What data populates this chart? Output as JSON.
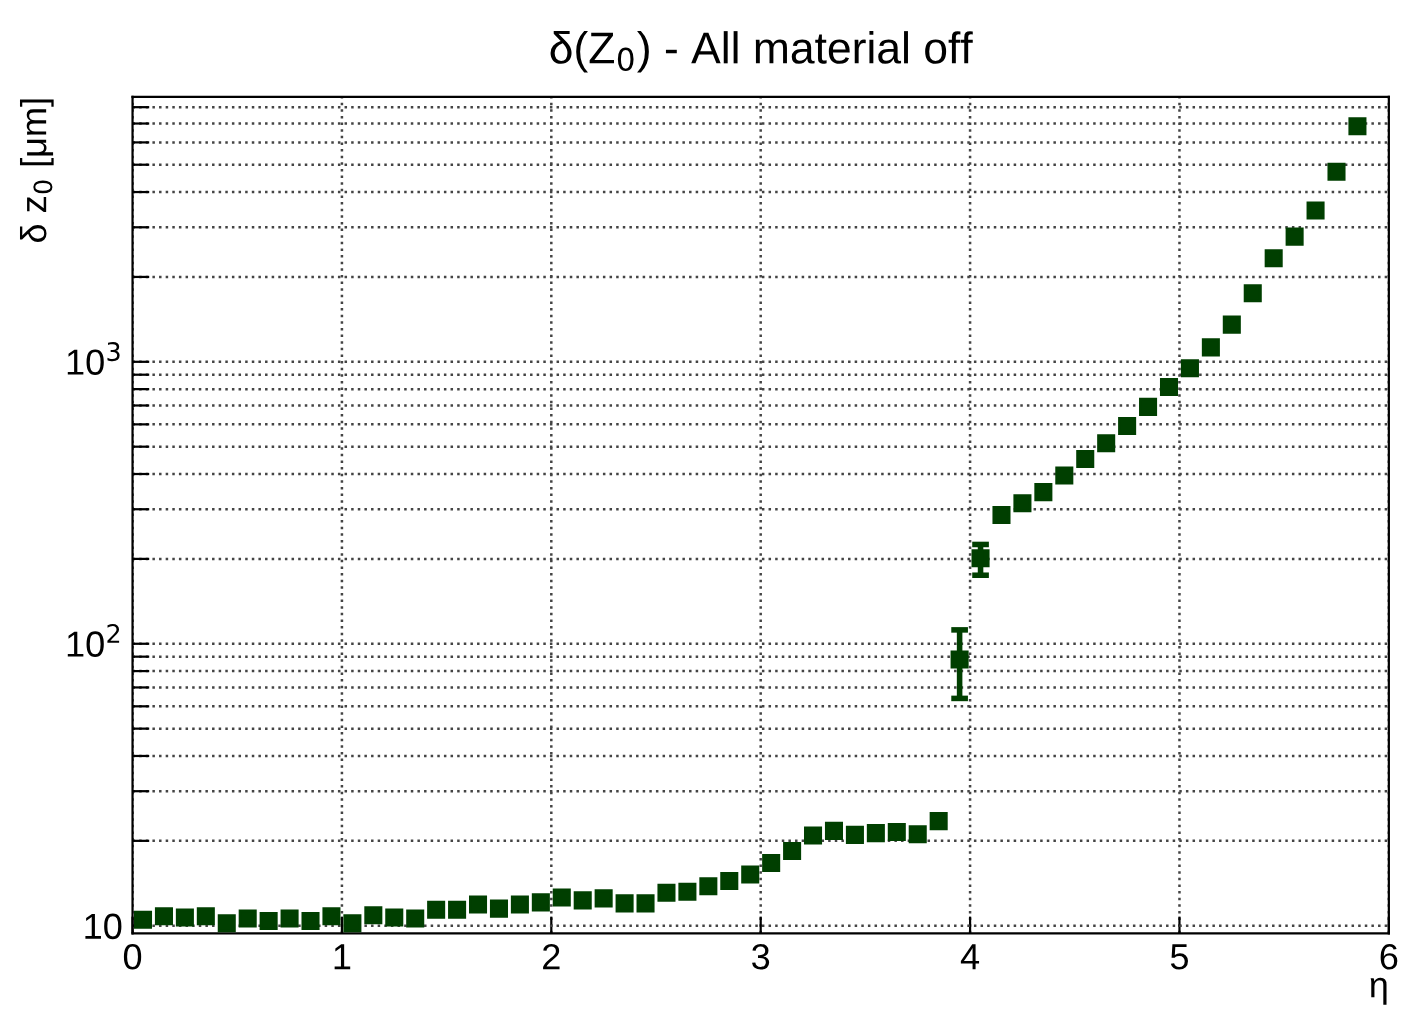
{
  "chart_data": {
    "type": "scatter",
    "title": "δ(Z$_{0}$) - All material off",
    "xlabel": "η",
    "ylabel": "δ z$_{0}$ [μm]",
    "x": [
      0.05,
      0.15,
      0.25,
      0.35,
      0.45,
      0.55,
      0.65,
      0.75,
      0.85,
      0.95,
      1.05,
      1.15,
      1.25,
      1.35,
      1.45,
      1.55,
      1.65,
      1.75,
      1.85,
      1.95,
      2.05,
      2.15,
      2.25,
      2.35,
      2.45,
      2.55,
      2.65,
      2.75,
      2.85,
      2.95,
      3.05,
      3.15,
      3.25,
      3.35,
      3.45,
      3.55,
      3.65,
      3.75,
      3.85,
      3.95,
      4.05,
      4.15,
      4.25,
      4.35,
      4.45,
      4.55,
      4.65,
      4.75,
      4.85,
      4.95,
      5.05,
      5.15,
      5.25,
      5.35,
      5.45,
      5.55,
      5.65,
      5.75,
      5.85
    ],
    "series": [
      {
        "color": "#003f00",
        "values": [
          10.5,
          10.8,
          10.7,
          10.8,
          10.2,
          10.6,
          10.4,
          10.6,
          10.4,
          10.8,
          10.2,
          10.9,
          10.7,
          10.6,
          11.4,
          11.4,
          11.9,
          11.5,
          11.9,
          12.1,
          12.6,
          12.3,
          12.5,
          12.0,
          12.0,
          13.1,
          13.2,
          13.8,
          14.4,
          15.2,
          16.7,
          18.4,
          20.9,
          21.7,
          21.0,
          21.3,
          21.5,
          21.1,
          23.5,
          88,
          201,
          286,
          315,
          345,
          395,
          452,
          514,
          592,
          692,
          814,
          948,
          1125,
          1355,
          1750,
          2330,
          2780,
          3440,
          4720,
          6850
        ],
        "errors": [
          null,
          null,
          null,
          null,
          null,
          null,
          null,
          null,
          null,
          null,
          null,
          null,
          null,
          null,
          null,
          null,
          null,
          null,
          null,
          null,
          null,
          null,
          null,
          null,
          null,
          null,
          null,
          null,
          null,
          null,
          null,
          null,
          null,
          null,
          null,
          null,
          null,
          null,
          null,
          [
            64,
            112
          ],
          [
            175,
            225
          ],
          null,
          null,
          null,
          null,
          null,
          null,
          null,
          null,
          null,
          null,
          null,
          null,
          null,
          null,
          null,
          null,
          null,
          null
        ]
      }
    ],
    "marker": "square",
    "log": "y",
    "grid": true,
    "xlim": [
      0,
      6
    ],
    "xticks": [
      0,
      1,
      2,
      3,
      4,
      5,
      6
    ],
    "ylim": [
      9.4,
      8700
    ],
    "yticks": [
      {
        "value": 10,
        "label": "10"
      },
      {
        "value": 20,
        "label": null
      },
      {
        "value": 30,
        "label": null
      },
      {
        "value": 40,
        "label": null
      },
      {
        "value": 50,
        "label": null
      },
      {
        "value": 60,
        "label": null
      },
      {
        "value": 70,
        "label": null
      },
      {
        "value": 80,
        "label": null
      },
      {
        "value": 90,
        "label": null
      },
      {
        "value": 100,
        "label": "10$^{2}$"
      },
      {
        "value": 200,
        "label": null
      },
      {
        "value": 300,
        "label": null
      },
      {
        "value": 400,
        "label": null
      },
      {
        "value": 500,
        "label": null
      },
      {
        "value": 600,
        "label": null
      },
      {
        "value": 700,
        "label": null
      },
      {
        "value": 800,
        "label": null
      },
      {
        "value": 900,
        "label": null
      },
      {
        "value": 1000,
        "label": "10$^{3}$"
      },
      {
        "value": 2000,
        "label": null
      },
      {
        "value": 3000,
        "label": null
      },
      {
        "value": 4000,
        "label": null
      },
      {
        "value": 5000,
        "label": null
      },
      {
        "value": 6000,
        "label": null
      },
      {
        "value": 7000,
        "label": null
      },
      {
        "value": 8000,
        "label": null
      }
    ]
  }
}
